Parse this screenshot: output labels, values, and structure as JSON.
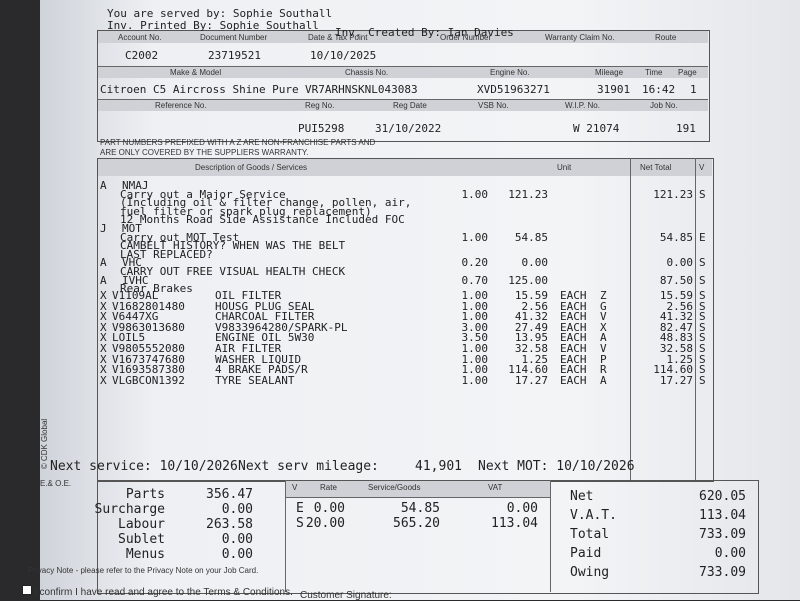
{
  "header": {
    "served_by": "You are served by: Sophie Southall",
    "printed_by": "Inv. Printed By: Sophie Southall",
    "created_by": "Inv. Created By: Ian Davies"
  },
  "info": {
    "rows": [
      {
        "labels": [
          "Account No.",
          "Document Number",
          "Date & Tax Point",
          "Order Number",
          "Warranty Claim No.",
          "Route"
        ],
        "values": [
          "C2002",
          "23719521",
          "10/10/2025"
        ]
      },
      {
        "labels": [
          "Make & Model",
          "Chassis No.",
          "Engine No.",
          "Mileage",
          "Time",
          "Page"
        ],
        "values": [
          "Citroen C5 Aircross Shine Pure",
          "VR7ARHNSKNL043083",
          "XVD51963271",
          "31901",
          "16:42",
          "1"
        ]
      },
      {
        "labels": [
          "Reference No.",
          "Reg No.",
          "Reg Date",
          "VSB No.",
          "W.I.P. No.",
          "Job No."
        ],
        "values": [
          "PUI5298",
          "31/10/2022",
          "W 21074",
          "191"
        ]
      }
    ]
  },
  "notice": [
    "PART NUMBERS PREFIXED WITH A Z ARE NON-FRANCHISE PARTS AND",
    "ARE ONLY COVERED BY THE SUPPLIERS WARRANTY."
  ],
  "table": {
    "headers": [
      "Description of Goods / Services",
      "Unit",
      "Net Total",
      "V"
    ],
    "lines": [
      {
        "code": "A",
        "item": "NMAJ"
      },
      {
        "description": "Carry out a Major Service",
        "qty": "1.00",
        "price": "121.23",
        "net": "121.23",
        "vat": "S"
      },
      {
        "description": "(Including oil & filter change, pollen, air,"
      },
      {
        "description": "fuel filter or spark plug replacement)"
      },
      {
        "description": "12 Months Road Side Assistance Included FOC"
      },
      {
        "code": "J",
        "item": "MOT"
      },
      {
        "description": "Carry out MOT Test",
        "qty": "1.00",
        "price": "54.85",
        "net": "54.85",
        "vat": "E"
      },
      {
        "description": "CAMBELT HISTORY? WHEN WAS THE BELT"
      },
      {
        "description": "LAST REPLACED?"
      },
      {
        "code": "A",
        "item": "VHC",
        "qty": "0.20",
        "price": "0.00",
        "net": "0.00",
        "vat": "S"
      },
      {
        "description": "CARRY OUT FREE VISUAL HEALTH CHECK"
      },
      {
        "code": "A",
        "item": "IVHC",
        "qty": "0.70",
        "price": "125.00",
        "net": "87.50",
        "vat": "S"
      },
      {
        "description": "Rear Brakes"
      },
      {
        "code": "X",
        "item": "V1109AL",
        "description": "OIL FILTER",
        "qty": "1.00",
        "price": "15.59",
        "unit": "EACH",
        "unit_code": "Z",
        "net": "15.59",
        "vat": "S"
      },
      {
        "code": "X",
        "item": "V1682801480",
        "description": "HOUSG PLUG SEAL",
        "qty": "1.00",
        "price": "2.56",
        "unit": "EACH",
        "unit_code": "G",
        "net": "2.56",
        "vat": "S"
      },
      {
        "code": "X",
        "item": "V6447XG",
        "description": "CHARCOAL FILTER",
        "qty": "1.00",
        "price": "41.32",
        "unit": "EACH",
        "unit_code": "V",
        "net": "41.32",
        "vat": "S"
      },
      {
        "code": "X",
        "item": "V9863013680",
        "description": "V9833964280/SPARK-PL",
        "qty": "3.00",
        "price": "27.49",
        "unit": "EACH",
        "unit_code": "X",
        "net": "82.47",
        "vat": "S"
      },
      {
        "code": "X",
        "item": "LOIL5",
        "description": "ENGINE OIL 5W30",
        "qty": "3.50",
        "price": "13.95",
        "unit": "EACH",
        "unit_code": "A",
        "net": "48.83",
        "vat": "S"
      },
      {
        "code": "X",
        "item": "V9805552080",
        "description": "AIR FILTER",
        "qty": "1.00",
        "price": "32.58",
        "unit": "EACH",
        "unit_code": "V",
        "net": "32.58",
        "vat": "S"
      },
      {
        "code": "X",
        "item": "V1673747680",
        "description": "WASHER LIQUID",
        "qty": "1.00",
        "price": "1.25",
        "unit": "EACH",
        "unit_code": "P",
        "net": "1.25",
        "vat": "S"
      },
      {
        "code": "X",
        "item": "V1693587380",
        "description": "4 BRAKE PADS/R",
        "qty": "1.00",
        "price": "114.60",
        "unit": "EACH",
        "unit_code": "R",
        "net": "114.60",
        "vat": "S"
      },
      {
        "code": "X",
        "item": "VLGBCON1392",
        "description": "TYRE SEALANT",
        "qty": "1.00",
        "price": "17.27",
        "unit": "EACH",
        "unit_code": "A",
        "net": "17.27",
        "vat": "S"
      }
    ]
  },
  "next": {
    "service": "Next service: 10/10/2026",
    "mileage_label": "Next serv mileage:",
    "mileage": "41,901",
    "mot": "Next MOT: 10/10/2026"
  },
  "side_text": "© CDK Global",
  "eoe": "E.& O.E.",
  "summary": [
    [
      "Parts",
      "356.47"
    ],
    [
      "Surcharge",
      "0.00"
    ],
    [
      "Labour",
      "263.58"
    ],
    [
      "Sublet",
      "0.00"
    ],
    [
      "Menus",
      "0.00"
    ]
  ],
  "vat_table": {
    "headers": [
      "V",
      "Rate",
      "Service/Goods",
      "VAT"
    ],
    "rows": [
      [
        "E",
        "0.00",
        "54.85",
        "0.00"
      ],
      [
        "S",
        "20.00",
        "565.20",
        "113.04"
      ]
    ]
  },
  "totals": [
    [
      "Net",
      "620.05"
    ],
    [
      "V.A.T.",
      "113.04"
    ],
    [
      "Total",
      "733.09"
    ],
    [
      "Paid",
      "0.00"
    ],
    [
      "Owing",
      "733.09"
    ]
  ],
  "privacy": "Privacy Note - please refer to the Privacy Note on your Job Card.",
  "confirm": "I confirm I have read and agree to the Terms & Conditions.",
  "signature": "Customer Signature:"
}
